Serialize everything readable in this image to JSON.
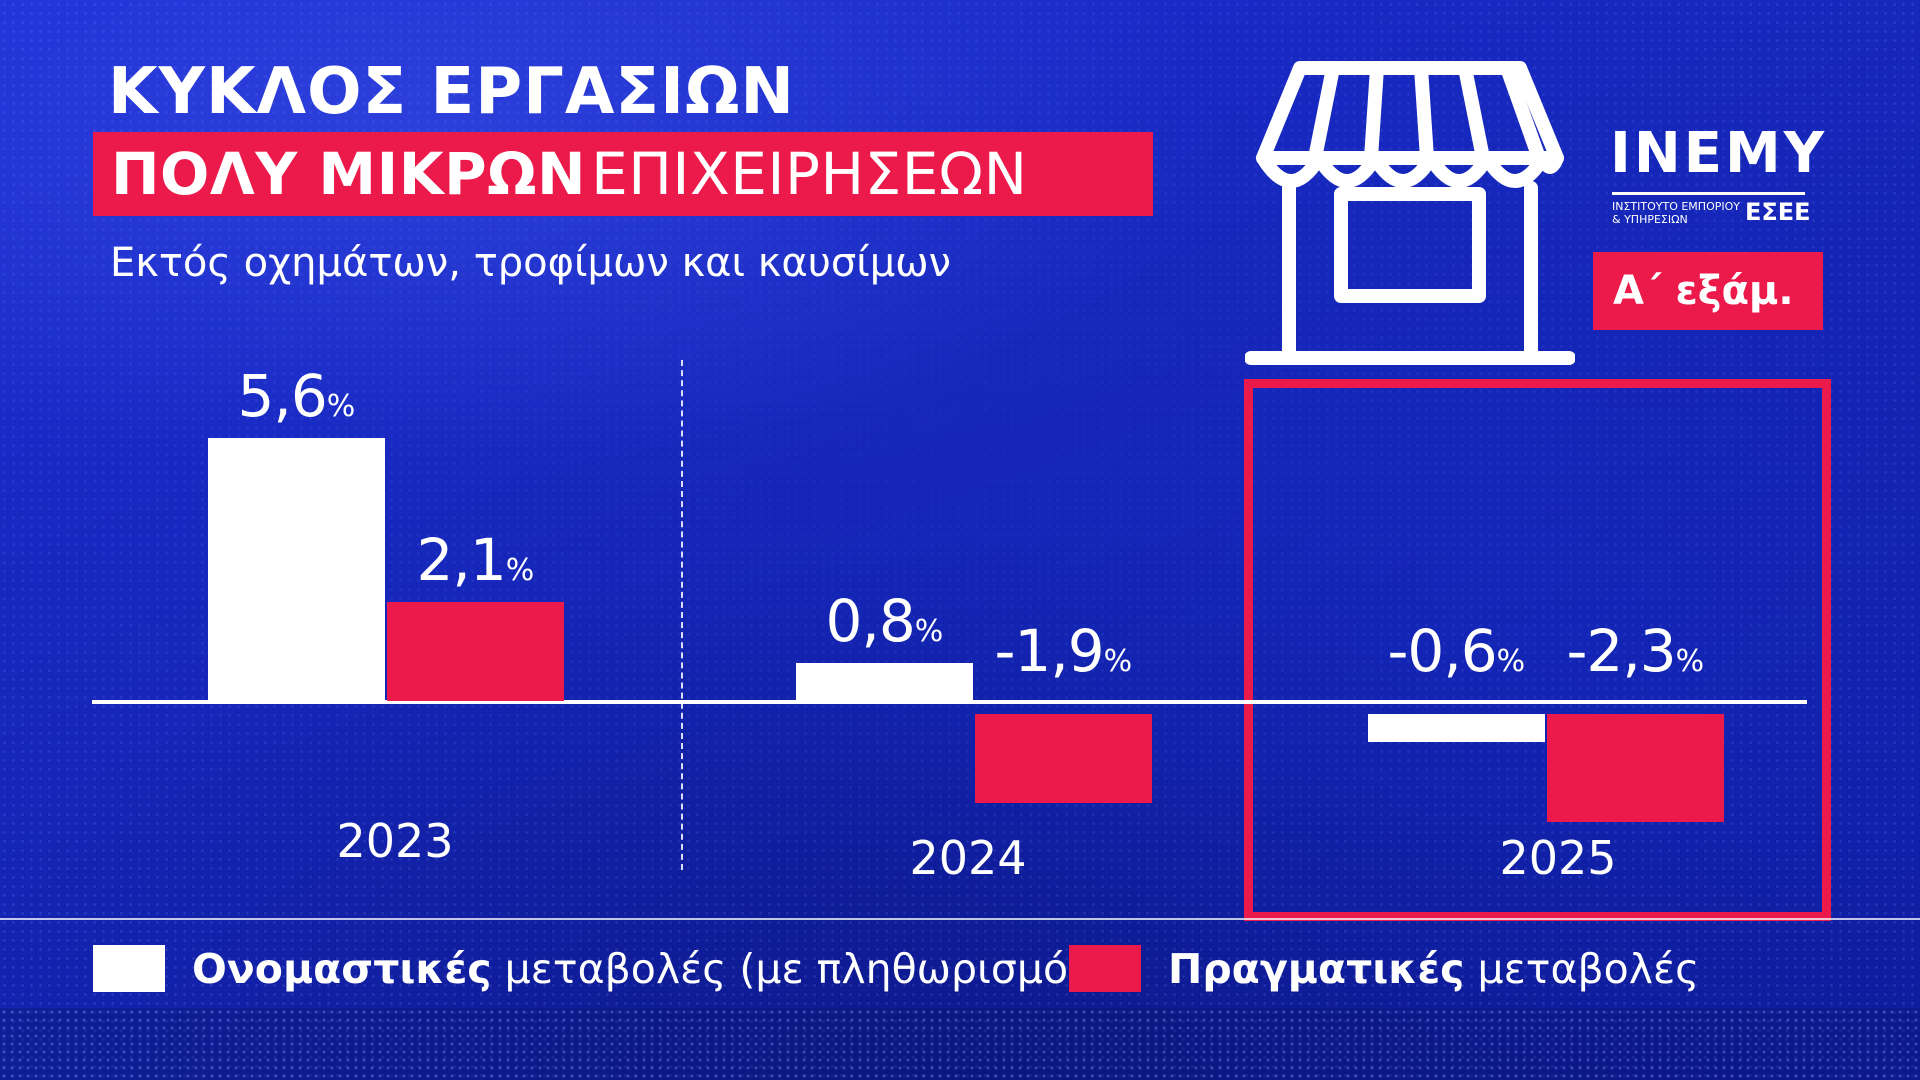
{
  "header": {
    "title": "ΚΥΚΛΟΣ ΕΡΓΑΣΙΩΝ",
    "title_band_bold": "ΠΟΛΥ ΜΙΚΡΩΝ",
    "title_band_regular": "ΕΠΙΧΕΙΡΗΣΕΩΝ",
    "subtitle": "Εκτός οχημάτων, τροφίμων και καυσίμων"
  },
  "logo": {
    "name": "INEMY",
    "line1": "ΙΝΣΤΙΤΟΥΤΟ ΕΜΠΟΡΙΟΥ",
    "line2": "& ΥΠΗΡΕΣΙΩΝ",
    "org": "ΕΣΕΕ"
  },
  "period_badge": "Α΄ εξάμ.",
  "icon": "shop-storefront-icon",
  "colors": {
    "background": "#1a2bc8",
    "nominal": "#ffffff",
    "real": "#ec1a4b"
  },
  "chart_data": {
    "type": "bar",
    "categories": [
      "2023",
      "2024",
      "2025"
    ],
    "series": [
      {
        "name": "Ονομαστικές μεταβολές (με πληθωρισμό)",
        "values": [
          5.6,
          0.8,
          -0.6
        ]
      },
      {
        "name": "Πραγματικές μεταβολές",
        "values": [
          2.1,
          -1.9,
          -2.3
        ]
      }
    ],
    "value_labels": {
      "nominal": [
        "5,6",
        "0,8",
        "-0,6"
      ],
      "real": [
        "2,1",
        "-1,9",
        "-2,3"
      ],
      "unit": "%"
    },
    "highlighted_category": "2025",
    "grid": false,
    "legend_position": "bottom"
  },
  "legend": {
    "nominal_bold": "Ονομαστικές",
    "nominal_rest": " μεταβολές (με πληθωρισμό)",
    "real_bold": "Πραγματικές",
    "real_rest": " μεταβολές"
  }
}
